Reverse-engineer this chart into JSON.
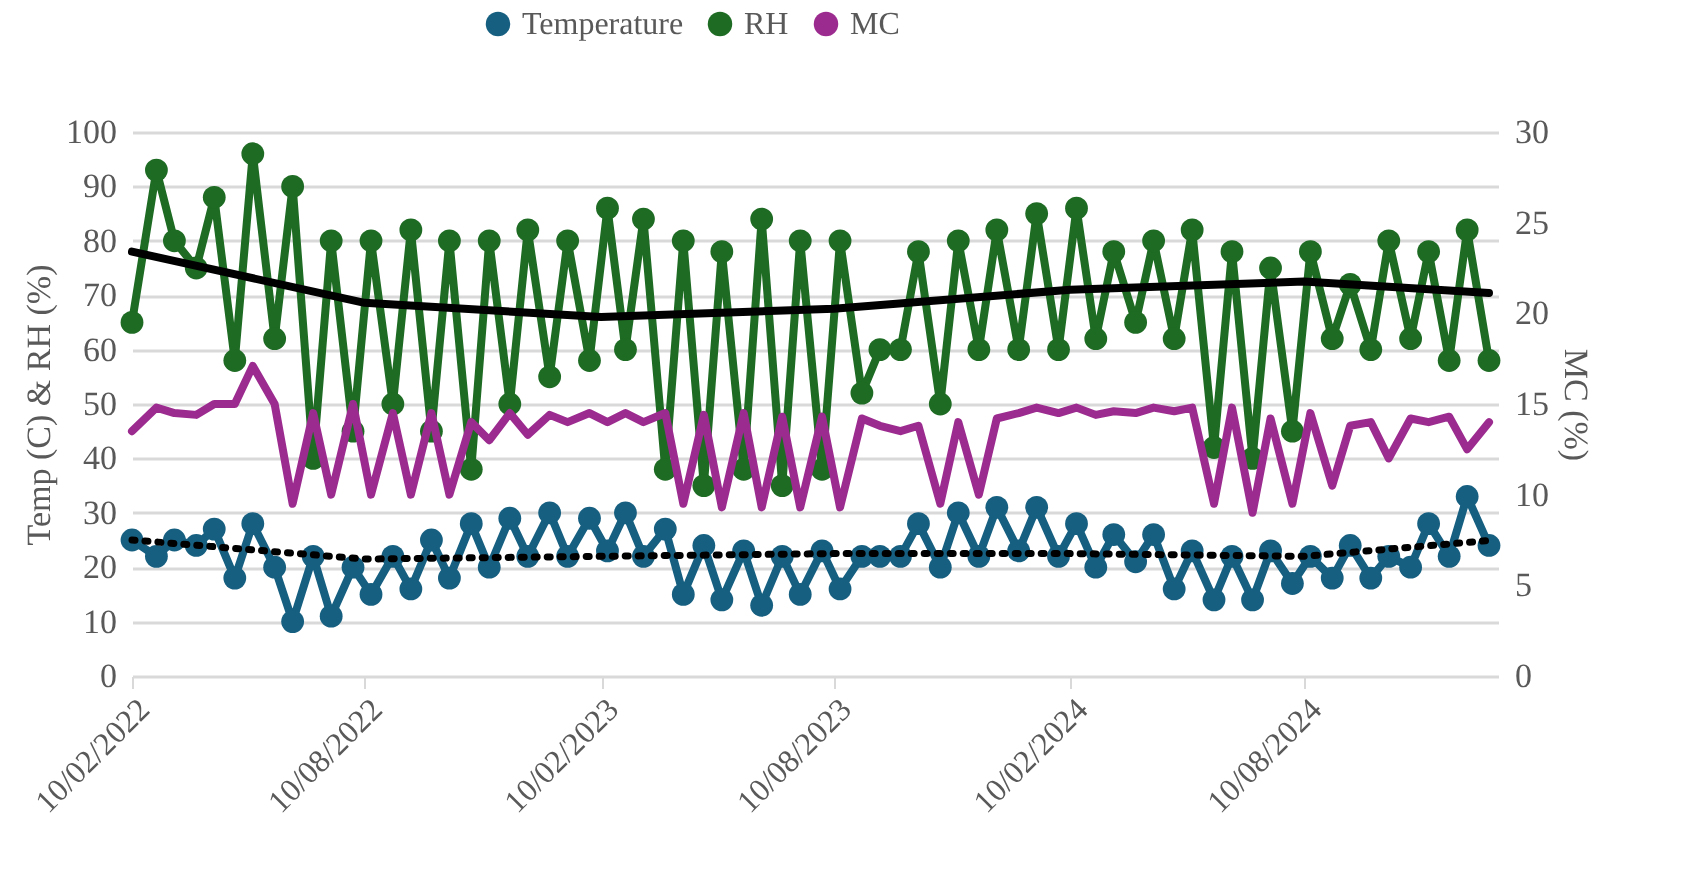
{
  "chart_data": {
    "type": "line",
    "ylabel": "Temp (C) & RH (%)",
    "y2label": "MC (%)",
    "xlim": [
      "2022-02-10",
      "2025-01-08"
    ],
    "xticks": [
      {
        "value": "2022-02-10",
        "label": "10/02/2022"
      },
      {
        "value": "2022-08-10",
        "label": "10/08/2022"
      },
      {
        "value": "2023-02-10",
        "label": "10/02/2023"
      },
      {
        "value": "2023-08-10",
        "label": "10/08/2023"
      },
      {
        "value": "2024-02-10",
        "label": "10/02/2024"
      },
      {
        "value": "2024-08-10",
        "label": "10/08/2024"
      }
    ],
    "ylim": [
      0,
      100
    ],
    "yticks": [
      0,
      10,
      20,
      30,
      40,
      50,
      60,
      70,
      80,
      90,
      100
    ],
    "y2lim": [
      0,
      30
    ],
    "y2ticks": [
      0,
      5,
      10,
      15,
      20,
      25,
      30
    ],
    "grid": "y",
    "legend": "top",
    "x": [
      "2022-02-10",
      "2022-03-01",
      "2022-03-15",
      "2022-04-01",
      "2022-04-15",
      "2022-05-01",
      "2022-05-15",
      "2022-06-01",
      "2022-06-15",
      "2022-07-01",
      "2022-07-15",
      "2022-08-01",
      "2022-08-15",
      "2022-09-01",
      "2022-09-15",
      "2022-10-01",
      "2022-10-15",
      "2022-11-01",
      "2022-11-15",
      "2022-12-01",
      "2022-12-15",
      "2023-01-01",
      "2023-01-15",
      "2023-02-01",
      "2023-02-15",
      "2023-03-01",
      "2023-03-15",
      "2023-04-01",
      "2023-04-15",
      "2023-05-01",
      "2023-05-15",
      "2023-06-01",
      "2023-06-15",
      "2023-07-01",
      "2023-07-15",
      "2023-08-01",
      "2023-08-15",
      "2023-09-01",
      "2023-09-15",
      "2023-10-01",
      "2023-10-15",
      "2023-11-01",
      "2023-11-15",
      "2023-12-01",
      "2023-12-15",
      "2024-01-01",
      "2024-01-15",
      "2024-02-01",
      "2024-02-15",
      "2024-03-01",
      "2024-03-15",
      "2024-04-01",
      "2024-04-15",
      "2024-05-01",
      "2024-05-15",
      "2024-06-01",
      "2024-06-15",
      "2024-07-01",
      "2024-07-15",
      "2024-08-01",
      "2024-08-15",
      "2024-09-01",
      "2024-09-15",
      "2024-10-01",
      "2024-10-15",
      "2024-11-01",
      "2024-11-15",
      "2024-12-01",
      "2024-12-15",
      "2025-01-01"
    ],
    "series": [
      {
        "name": "Temperature",
        "color": "#165f80",
        "marker": "circle",
        "values": [
          25,
          22,
          25,
          24,
          27,
          18,
          28,
          20,
          10,
          22,
          11,
          20,
          15,
          22,
          16,
          25,
          18,
          28,
          20,
          29,
          22,
          30,
          22,
          29,
          23,
          30,
          22,
          27,
          15,
          24,
          14,
          23,
          13,
          22,
          15,
          23,
          16,
          22,
          22,
          22,
          28,
          20,
          30,
          22,
          31,
          23,
          31,
          22,
          28,
          20,
          26,
          21,
          26,
          16,
          23,
          14,
          22,
          14,
          23,
          17,
          22,
          18,
          24,
          18,
          22,
          20,
          28,
          22,
          33,
          24
        ]
      },
      {
        "name": "RH",
        "color": "#1e6b24",
        "marker": "circle",
        "values": [
          65,
          93,
          80,
          75,
          88,
          58,
          96,
          62,
          90,
          40,
          80,
          45,
          80,
          50,
          82,
          45,
          80,
          38,
          80,
          50,
          82,
          55,
          80,
          58,
          86,
          60,
          84,
          38,
          80,
          35,
          78,
          38,
          84,
          35,
          80,
          38,
          80,
          52,
          60,
          60,
          78,
          50,
          80,
          60,
          82,
          60,
          85,
          60,
          86,
          62,
          78,
          65,
          80,
          62,
          82,
          42,
          78,
          40,
          75,
          45,
          78,
          62,
          72,
          60,
          80,
          62,
          78,
          58,
          82,
          58
        ]
      },
      {
        "name": "MC",
        "color": "#9c2b8f",
        "marker": "none",
        "axis": "y2",
        "values": [
          13.5,
          14.8,
          14.5,
          14.4,
          15,
          15,
          17.1,
          15,
          9.5,
          14.5,
          10,
          15,
          10,
          14.5,
          10,
          14.5,
          10,
          14,
          13,
          14.5,
          13.3,
          14.4,
          14,
          14.5,
          14,
          14.5,
          14,
          14.5,
          9.5,
          14.4,
          9.3,
          14.5,
          9.3,
          14.3,
          9.3,
          14.3,
          9.3,
          14.2,
          13.8,
          13.5,
          13.8,
          9.5,
          14,
          10,
          14.2,
          14.5,
          14.8,
          14.5,
          14.8,
          14.4,
          14.6,
          14.5,
          14.8,
          14.6,
          14.8,
          9.5,
          14.8,
          9,
          14.2,
          9.5,
          14.5,
          10.5,
          13.8,
          14,
          12,
          14.2,
          14,
          14.3,
          12.5,
          14
        ]
      },
      {
        "color": "#000000",
        "marker": "none",
        "line_style": "solid",
        "x": [
          "2022-02-10",
          "2022-08-10",
          "2023-02-10",
          "2023-08-10",
          "2024-02-10",
          "2024-08-10",
          "2025-01-01"
        ],
        "values": [
          78,
          68.6,
          66,
          67.5,
          71,
          72.5,
          70.4
        ]
      },
      {
        "color": "#000000",
        "marker": "none",
        "line_style": "dotted",
        "x": [
          "2022-02-10",
          "2022-08-10",
          "2023-02-10",
          "2023-08-10",
          "2024-02-10",
          "2024-08-10",
          "2025-01-01"
        ],
        "values": [
          25,
          21.5,
          22,
          22.5,
          22.5,
          22,
          24.9
        ]
      }
    ]
  }
}
